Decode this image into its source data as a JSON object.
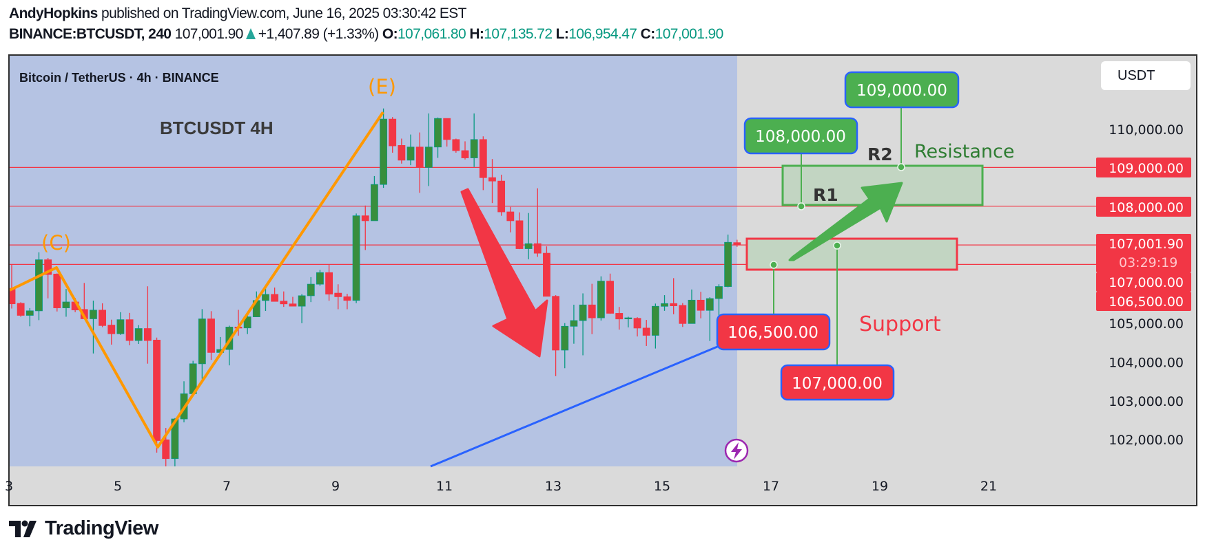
{
  "header": {
    "author": "AndyHopkins",
    "published": "published on TradingView.com, June 16, 2025 03:30:42 EST",
    "symbol": "BINANCE:BTCUSDT, 240",
    "last": "107,001.90",
    "change": "+1,407.89 (+1.33%)",
    "o_label": "O:",
    "o": "107,061.80",
    "h_label": "H:",
    "h": "107,135.72",
    "l_label": "L:",
    "l": "106,954.47",
    "c_label": "C:",
    "c": "107,001.90"
  },
  "chart": {
    "legend_title": "Bitcoin / TetherUS · 4h · BINANCE",
    "currency": "USDT",
    "countdown": "03:29:19",
    "branding": "TradingView"
  },
  "colors": {
    "up": "#388e3c",
    "up_wick": "#089981",
    "down": "#f23645",
    "highlight_region": "#b5c3e3",
    "background": "#dadada",
    "wave": "#ff9800",
    "trendline": "#2962ff",
    "label_green": "#4caf50",
    "resistance_text": "#2e7d32"
  },
  "annotations": {
    "title": "BTCUSDT 4H",
    "wave_c": "(C)",
    "wave_e": "(E)",
    "r1": "R1",
    "r2": "R2",
    "resistance": "Resistance",
    "support": "Support",
    "label_108000": "108,000.00",
    "label_109000": "109,000.00",
    "label_106500": "106,500.00",
    "label_107000": "107,000.00"
  },
  "chart_data": {
    "type": "candlestick",
    "symbol": "BINANCE:BTCUSDT",
    "interval": "240",
    "ylim": [
      101290,
      112200
    ],
    "y_ticks": [
      {
        "value": 110000,
        "label": "110,000.00"
      },
      {
        "value": 105000,
        "label": "105,000.00"
      },
      {
        "value": 104000,
        "label": "104,000.00"
      },
      {
        "value": 103000,
        "label": "103,000.00"
      },
      {
        "value": 102000,
        "label": "102,000.00"
      }
    ],
    "x_ticks": [
      "3",
      "5",
      "7",
      "9",
      "11",
      "13",
      "15",
      "17",
      "19",
      "21"
    ],
    "price_tags": [
      {
        "value": 109000,
        "label": "109,000.00"
      },
      {
        "value": 108000,
        "label": "108,000.00"
      },
      {
        "value": 107001.9,
        "label": "107,001.90"
      },
      {
        "value": 107000,
        "label": "107,000.00"
      },
      {
        "value": 106500,
        "label": "106,500.00"
      }
    ],
    "horizontal_lines": [
      109000,
      108000,
      107001.9,
      106500
    ],
    "resistance_zone": [
      108000,
      109000
    ],
    "support_zone": [
      106500,
      107000
    ],
    "ohlc": [
      [
        105883,
        106503,
        105363,
        105485
      ],
      [
        105497,
        105526,
        105152,
        105187
      ],
      [
        105187,
        105374,
        104906,
        105304
      ],
      [
        105304,
        106813,
        105064,
        106620
      ],
      [
        106620,
        106667,
        105626,
        106240
      ],
      [
        106252,
        106269,
        105287,
        105380
      ],
      [
        105380,
        105866,
        105152,
        105532
      ],
      [
        105532,
        105637,
        105269,
        105327
      ],
      [
        105339,
        106023,
        105099,
        105099
      ],
      [
        105099,
        105567,
        104205,
        105322
      ],
      [
        105322,
        105497,
        104883,
        104924
      ],
      [
        104936,
        105076,
        104433,
        104713
      ],
      [
        104713,
        105269,
        104684,
        105076
      ],
      [
        105076,
        105251,
        104415,
        104538
      ],
      [
        104538,
        104936,
        104450,
        104848
      ],
      [
        104848,
        105936,
        103942,
        104538
      ],
      [
        104550,
        104614,
        101650,
        101960
      ],
      [
        101980,
        102286,
        101000,
        101495
      ],
      [
        101495,
        102540,
        101000,
        102517
      ],
      [
        102517,
        103488,
        102430,
        103166
      ],
      [
        103166,
        104015,
        103100,
        103939
      ],
      [
        103939,
        105348,
        103553,
        105096
      ],
      [
        105096,
        105295,
        104038,
        104231
      ],
      [
        104231,
        104629,
        104196,
        104307
      ],
      [
        104307,
        104921,
        103898,
        104886
      ],
      [
        104886,
        105330,
        104664,
        104870
      ],
      [
        104863,
        105278,
        104705,
        105149
      ],
      [
        105149,
        105804,
        105149,
        105570
      ],
      [
        105570,
        105892,
        105301,
        105728
      ],
      [
        105728,
        105904,
        105547,
        105547
      ],
      [
        105553,
        105804,
        105406,
        105483
      ],
      [
        105483,
        105664,
        105424,
        105424
      ],
      [
        105424,
        105734,
        104985,
        105693
      ],
      [
        105693,
        106172,
        105529,
        105991
      ],
      [
        105991,
        106359,
        105950,
        106289
      ],
      [
        106289,
        106500,
        105564,
        105734
      ],
      [
        105760,
        105988,
        105345,
        105667
      ],
      [
        105667,
        105743,
        105345,
        105573
      ],
      [
        105573,
        107813,
        105503,
        107754
      ],
      [
        107754,
        108018,
        106871,
        107626
      ],
      [
        107626,
        108778,
        107626,
        108561
      ],
      [
        108561,
        110520,
        108474,
        110246
      ],
      [
        110246,
        110298,
        109380,
        109556
      ],
      [
        109567,
        109743,
        109099,
        109187
      ],
      [
        109187,
        109848,
        109058,
        109526
      ],
      [
        109526,
        109901,
        108345,
        109000
      ],
      [
        109000,
        110392,
        108520,
        109526
      ],
      [
        109526,
        110287,
        109246,
        110263
      ],
      [
        110263,
        110263,
        109538,
        109719
      ],
      [
        109719,
        109743,
        109380,
        109433
      ],
      [
        109433,
        109673,
        109205,
        109246
      ],
      [
        109246,
        110392,
        109012,
        109719
      ],
      [
        109719,
        109801,
        108415,
        108737
      ],
      [
        108737,
        109216,
        108082,
        108649
      ],
      [
        108649,
        108813,
        107754,
        107854
      ],
      [
        107854,
        107982,
        107327,
        107626
      ],
      [
        107626,
        107842,
        106895,
        106906
      ],
      [
        106906,
        107825,
        106632,
        107035
      ],
      [
        107035,
        108462,
        106696,
        106789
      ],
      [
        106789,
        106965,
        105678,
        105678
      ],
      [
        105678,
        105708,
        103620,
        104292
      ],
      [
        104292,
        104988,
        103825,
        104906
      ],
      [
        104906,
        105462,
        104456,
        105053
      ],
      [
        105053,
        105754,
        104158,
        105456
      ],
      [
        105456,
        106000,
        104702,
        105123
      ],
      [
        105123,
        106193,
        105053,
        106070
      ],
      [
        106070,
        106263,
        105228,
        105240
      ],
      [
        105240,
        105404,
        104819,
        105094
      ],
      [
        105111,
        105152,
        104877,
        105123
      ],
      [
        105111,
        105140,
        104643,
        104860
      ],
      [
        104860,
        105070,
        104398,
        104672
      ],
      [
        104672,
        105491,
        104333,
        105421
      ],
      [
        105421,
        105708,
        105304,
        105491
      ],
      [
        105491,
        106146,
        105216,
        105433
      ],
      [
        105444,
        105503,
        104889,
        104977
      ],
      [
        104977,
        105854,
        104977,
        105579
      ],
      [
        105579,
        105795,
        105111,
        105316
      ],
      [
        105316,
        105655,
        104526,
        105620
      ],
      [
        105620,
        105988,
        105023,
        105930
      ],
      [
        105930,
        107269,
        105912,
        107070
      ],
      [
        107061.8,
        107135.72,
        106954.47,
        107001.9
      ]
    ]
  }
}
